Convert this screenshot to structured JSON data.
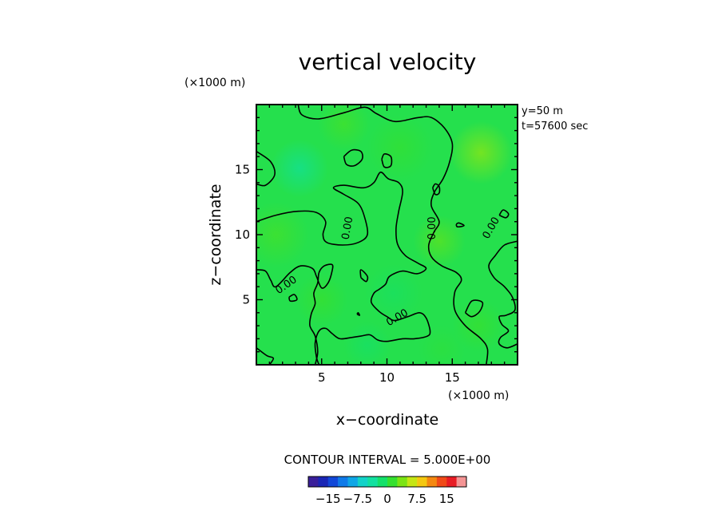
{
  "chart_data": {
    "type": "heatmap",
    "title": "vertical velocity",
    "xlabel": "x−coordinate",
    "ylabel": "z−coordinate",
    "x_unit": "(×1000 m)",
    "y_unit": "(×1000 m)",
    "x_ticks": [
      5,
      10,
      15
    ],
    "y_ticks": [
      5,
      10,
      15
    ],
    "x_tick_labels": [
      "5",
      "10",
      "15"
    ],
    "y_tick_labels": [
      "5",
      "10",
      "15"
    ],
    "xlim": [
      0,
      20
    ],
    "ylim": [
      0,
      20
    ],
    "annotation_lines": [
      "y=50  m",
      "t=57600 sec"
    ],
    "contour_interval_text": "CONTOUR INTERVAL = 5.000E+00",
    "contour_label_text": "0.00",
    "contour_labels": [
      {
        "x": 7.0,
        "y": 10.5,
        "angle": -80
      },
      {
        "x": 13.5,
        "y": 10.5,
        "angle": -90
      },
      {
        "x": 18.0,
        "y": 10.5,
        "angle": -60
      },
      {
        "x": 2.3,
        "y": 6.1,
        "angle": -35
      },
      {
        "x": 10.8,
        "y": 3.6,
        "angle": -30
      }
    ],
    "colorbar": {
      "levels": [
        -18,
        -15,
        -12.5,
        -10,
        -7.5,
        -5,
        -2.5,
        0,
        2.5,
        5,
        7.5,
        10,
        12.5,
        15,
        18
      ],
      "colors": [
        "#3a1f9a",
        "#1a26b5",
        "#1248d8",
        "#0f7ae8",
        "#0fa6e6",
        "#13d2c8",
        "#12e0a0",
        "#14e06a",
        "#35e030",
        "#7be414",
        "#c5e614",
        "#f4c810",
        "#f48810",
        "#f04a18",
        "#e81c24",
        "#f49494"
      ],
      "tick_values": [
        -15,
        -7.5,
        0,
        7.5,
        15
      ],
      "tick_labels": [
        "−15",
        "−7.5",
        "0",
        "7.5",
        "15"
      ]
    },
    "field_range": [
      -1.5,
      2.0
    ],
    "field_blobs": [
      {
        "x": 17.2,
        "y": 16.3,
        "r": 2.4,
        "v": 2.0
      },
      {
        "x": 3.3,
        "y": 15.1,
        "r": 2.2,
        "v": -1.5
      },
      {
        "x": 6.7,
        "y": 18.5,
        "r": 2.0,
        "v": 0.8
      },
      {
        "x": 11.0,
        "y": 16.7,
        "r": 2.5,
        "v": 0.5
      },
      {
        "x": 14.0,
        "y": 9.5,
        "r": 2.0,
        "v": 1.2
      },
      {
        "x": 1.5,
        "y": 10.0,
        "r": 2.5,
        "v": 0.8
      },
      {
        "x": 5.0,
        "y": 5.0,
        "r": 2.0,
        "v": 0.6
      },
      {
        "x": 10.5,
        "y": 5.5,
        "r": 2.2,
        "v": -0.4
      },
      {
        "x": 17.0,
        "y": 3.0,
        "r": 2.0,
        "v": 0.6
      },
      {
        "x": 8.5,
        "y": 1.5,
        "r": 1.8,
        "v": -0.5
      },
      {
        "x": 14.2,
        "y": 1.2,
        "r": 1.8,
        "v": 0.3
      }
    ],
    "contours": [
      [
        [
          3.2,
          20
        ],
        [
          3.5,
          19.2
        ],
        [
          4.8,
          18.9
        ],
        [
          6.8,
          19.4
        ],
        [
          8.3,
          19.8
        ],
        [
          9.2,
          19.3
        ],
        [
          10.6,
          18.7
        ],
        [
          12.4,
          19.0
        ],
        [
          13.4,
          19.0
        ],
        [
          14.4,
          18.2
        ],
        [
          15.0,
          17.0
        ],
        [
          14.8,
          15.6
        ],
        [
          14.3,
          14.3
        ],
        [
          13.6,
          13.2
        ],
        [
          13.4,
          12.2
        ],
        [
          14.0,
          11.0
        ],
        [
          13.6,
          10.2
        ],
        [
          13.2,
          9.2
        ],
        [
          13.4,
          8.3
        ],
        [
          14.2,
          7.6
        ],
        [
          15.3,
          7.1
        ],
        [
          15.7,
          6.5
        ],
        [
          15.2,
          5.6
        ],
        [
          15.2,
          4.2
        ],
        [
          16.0,
          3.0
        ],
        [
          17.2,
          2.0
        ],
        [
          17.7,
          1.2
        ],
        [
          17.6,
          0
        ]
      ],
      [
        [
          0,
          11.0
        ],
        [
          1.5,
          11.5
        ],
        [
          3.2,
          11.8
        ],
        [
          4.6,
          11.7
        ],
        [
          5.3,
          11.0
        ],
        [
          5.1,
          10.0
        ],
        [
          5.4,
          9.4
        ],
        [
          6.6,
          9.2
        ],
        [
          7.8,
          9.4
        ],
        [
          8.5,
          10.0
        ],
        [
          8.3,
          11.3
        ],
        [
          7.8,
          12.4
        ],
        [
          6.7,
          13.1
        ],
        [
          5.9,
          13.6
        ],
        [
          6.7,
          13.8
        ],
        [
          8.2,
          13.6
        ],
        [
          9.0,
          14.0
        ],
        [
          9.5,
          14.8
        ],
        [
          10.1,
          14.3
        ],
        [
          10.9,
          14.0
        ],
        [
          11.2,
          13.3
        ],
        [
          10.9,
          11.8
        ],
        [
          10.7,
          10.5
        ],
        [
          10.8,
          9.3
        ],
        [
          11.4,
          8.4
        ],
        [
          12.4,
          7.8
        ],
        [
          13.0,
          7.4
        ],
        [
          12.3,
          7.0
        ],
        [
          11.2,
          7.2
        ],
        [
          10.2,
          6.8
        ],
        [
          9.9,
          6.2
        ],
        [
          9.4,
          5.8
        ],
        [
          9.0,
          5.5
        ],
        [
          8.8,
          4.8
        ],
        [
          9.4,
          4.1
        ],
        [
          10.0,
          3.7
        ],
        [
          10.6,
          3.4
        ],
        [
          11.6,
          3.7
        ],
        [
          12.5,
          4.0
        ],
        [
          13.0,
          3.6
        ],
        [
          13.3,
          2.6
        ],
        [
          13.1,
          2.2
        ],
        [
          12.1,
          2.0
        ],
        [
          11.2,
          2.0
        ],
        [
          10.0,
          1.8
        ],
        [
          9.3,
          1.9
        ],
        [
          8.7,
          2.3
        ],
        [
          8.0,
          2.2
        ],
        [
          7.3,
          2.1
        ],
        [
          6.4,
          2.0
        ],
        [
          5.8,
          2.4
        ],
        [
          5.3,
          2.8
        ],
        [
          4.8,
          2.6
        ],
        [
          4.5,
          1.7
        ],
        [
          4.6,
          0.6
        ],
        [
          4.8,
          0
        ]
      ],
      [
        [
          0,
          7.3
        ],
        [
          0.7,
          7.2
        ],
        [
          1.1,
          6.5
        ],
        [
          1.5,
          6.0
        ],
        [
          2.6,
          7.1
        ],
        [
          3.4,
          7.6
        ],
        [
          4.3,
          7.4
        ],
        [
          4.6,
          6.8
        ],
        [
          5.0,
          5.9
        ],
        [
          5.5,
          6.3
        ],
        [
          5.8,
          7.2
        ],
        [
          5.8,
          7.7
        ],
        [
          5.2,
          7.6
        ],
        [
          4.8,
          7.1
        ],
        [
          4.7,
          6.3
        ],
        [
          4.4,
          5.5
        ],
        [
          4.5,
          4.7
        ],
        [
          4.2,
          3.9
        ],
        [
          4.1,
          3.0
        ],
        [
          4.5,
          2.2
        ],
        [
          4.7,
          1.0
        ],
        [
          4.5,
          0
        ]
      ],
      [
        [
          0,
          16.4
        ],
        [
          1.1,
          15.6
        ],
        [
          1.4,
          14.6
        ],
        [
          0.7,
          13.8
        ],
        [
          0,
          13.9
        ]
      ],
      [
        [
          0,
          1.3
        ],
        [
          0.8,
          0.7
        ],
        [
          1.3,
          0.5
        ],
        [
          1.0,
          0
        ]
      ],
      [
        [
          6.7,
          16.0
        ],
        [
          7.3,
          16.5
        ],
        [
          8.0,
          16.4
        ],
        [
          8.1,
          15.8
        ],
        [
          7.5,
          15.3
        ],
        [
          6.9,
          15.4
        ],
        [
          6.7,
          16.0
        ]
      ],
      [
        [
          9.6,
          15.8
        ],
        [
          9.8,
          16.2
        ],
        [
          10.3,
          16.0
        ],
        [
          10.3,
          15.3
        ],
        [
          9.8,
          15.2
        ],
        [
          9.6,
          15.8
        ]
      ],
      [
        [
          13.5,
          13.6
        ],
        [
          13.7,
          13.9
        ],
        [
          14.0,
          13.7
        ],
        [
          14.0,
          13.2
        ],
        [
          13.7,
          13.1
        ],
        [
          13.5,
          13.6
        ]
      ],
      [
        [
          15.3,
          10.8
        ],
        [
          15.5,
          10.9
        ],
        [
          15.9,
          10.7
        ],
        [
          15.4,
          10.6
        ],
        [
          15.3,
          10.8
        ]
      ],
      [
        [
          8.0,
          6.7
        ],
        [
          8.0,
          7.3
        ],
        [
          8.5,
          6.8
        ],
        [
          8.4,
          6.4
        ],
        [
          8.0,
          6.7
        ]
      ],
      [
        [
          2.5,
          5.2
        ],
        [
          2.9,
          5.4
        ],
        [
          3.1,
          5.0
        ],
        [
          2.6,
          4.9
        ],
        [
          2.5,
          5.2
        ]
      ],
      [
        [
          20,
          9.5
        ],
        [
          19.0,
          9.2
        ],
        [
          18.3,
          8.4
        ],
        [
          17.8,
          7.6
        ],
        [
          18.2,
          6.7
        ],
        [
          19.0,
          6.0
        ],
        [
          19.6,
          5.2
        ],
        [
          19.8,
          4.2
        ],
        [
          19.1,
          3.8
        ],
        [
          18.6,
          3.7
        ],
        [
          18.8,
          3.1
        ],
        [
          19.3,
          2.6
        ],
        [
          18.7,
          2.1
        ],
        [
          18.6,
          1.6
        ],
        [
          19.2,
          1.3
        ],
        [
          20,
          1.6
        ]
      ],
      [
        [
          16.0,
          4.0
        ],
        [
          16.5,
          4.9
        ],
        [
          17.3,
          4.8
        ],
        [
          17.1,
          4.1
        ],
        [
          16.5,
          3.7
        ],
        [
          16.0,
          4.0
        ]
      ],
      [
        [
          18.6,
          11.5
        ],
        [
          18.9,
          11.9
        ],
        [
          19.3,
          11.6
        ],
        [
          19.1,
          11.3
        ],
        [
          18.6,
          11.5
        ]
      ],
      [
        [
          7.7,
          3.9
        ],
        [
          7.8,
          4.0
        ],
        [
          7.9,
          3.8
        ],
        [
          7.7,
          3.9
        ]
      ]
    ]
  }
}
